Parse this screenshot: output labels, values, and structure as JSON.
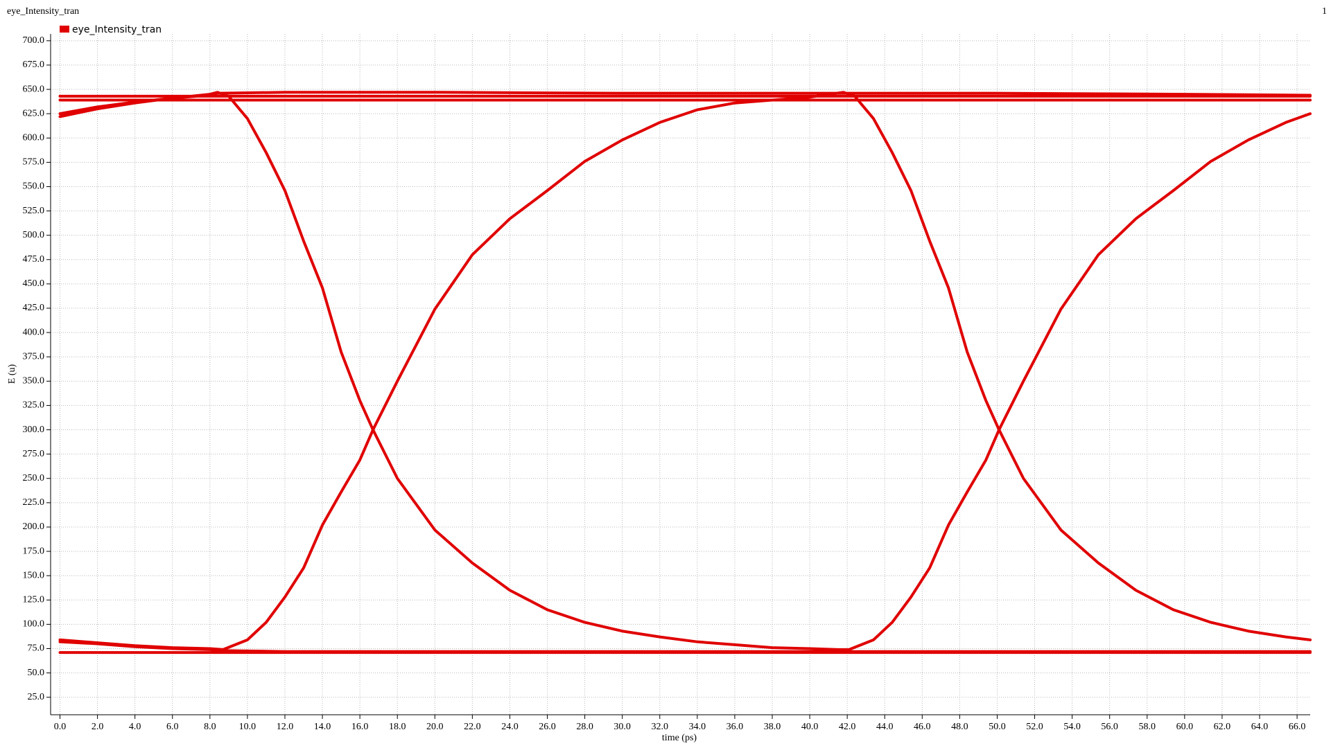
{
  "chart_data": {
    "type": "line",
    "title": "eye_Intensity_tran",
    "annotation": "1",
    "x_label": "time (ps)",
    "y_label": "E (u)",
    "grid": true,
    "legend_position": "upper left",
    "xlim": [
      -0.5,
      66.7
    ],
    "ylim": [
      7,
      707
    ],
    "xticks": [
      {
        "value": 0,
        "label": "0.0"
      },
      {
        "value": 2,
        "label": "2.0"
      },
      {
        "value": 4,
        "label": "4.0"
      },
      {
        "value": 6,
        "label": "6.0"
      },
      {
        "value": 8,
        "label": "8.0"
      },
      {
        "value": 10,
        "label": "10.0"
      },
      {
        "value": 12,
        "label": "12.0"
      },
      {
        "value": 14,
        "label": "14.0"
      },
      {
        "value": 16,
        "label": "16.0"
      },
      {
        "value": 18,
        "label": "18.0"
      },
      {
        "value": 20,
        "label": "20.0"
      },
      {
        "value": 22,
        "label": "22.0"
      },
      {
        "value": 24,
        "label": "24.0"
      },
      {
        "value": 26,
        "label": "26.0"
      },
      {
        "value": 28,
        "label": "28.0"
      },
      {
        "value": 30,
        "label": "30.0"
      },
      {
        "value": 32,
        "label": "32.0"
      },
      {
        "value": 34,
        "label": "34.0"
      },
      {
        "value": 36,
        "label": "36.0"
      },
      {
        "value": 38,
        "label": "38.0"
      },
      {
        "value": 40,
        "label": "40.0"
      },
      {
        "value": 42,
        "label": "42.0"
      },
      {
        "value": 44,
        "label": "44.0"
      },
      {
        "value": 46,
        "label": "46.0"
      },
      {
        "value": 48,
        "label": "48.0"
      },
      {
        "value": 50,
        "label": "50.0"
      },
      {
        "value": 52,
        "label": "52.0"
      },
      {
        "value": 54,
        "label": "54.0"
      },
      {
        "value": 56,
        "label": "56.0"
      },
      {
        "value": 58,
        "label": "58.0"
      },
      {
        "value": 60,
        "label": "60.0"
      },
      {
        "value": 62,
        "label": "62.0"
      },
      {
        "value": 64,
        "label": "64.0"
      },
      {
        "value": 66,
        "label": "66.0"
      }
    ],
    "yticks": [
      {
        "value": 25,
        "label": "25.0"
      },
      {
        "value": 50,
        "label": "50.0"
      },
      {
        "value": 75,
        "label": "75.0"
      },
      {
        "value": 100,
        "label": "100.0"
      },
      {
        "value": 125,
        "label": "125.0"
      },
      {
        "value": 150,
        "label": "150.0"
      },
      {
        "value": 175,
        "label": "175.0"
      },
      {
        "value": 200,
        "label": "200.0"
      },
      {
        "value": 225,
        "label": "225.0"
      },
      {
        "value": 250,
        "label": "250.0"
      },
      {
        "value": 275,
        "label": "275.0"
      },
      {
        "value": 300,
        "label": "300.0"
      },
      {
        "value": 325,
        "label": "325.0"
      },
      {
        "value": 350,
        "label": "350.0"
      },
      {
        "value": 375,
        "label": "375.0"
      },
      {
        "value": 400,
        "label": "400.0"
      },
      {
        "value": 425,
        "label": "425.0"
      },
      {
        "value": 450,
        "label": "450.0"
      },
      {
        "value": 475,
        "label": "475.0"
      },
      {
        "value": 500,
        "label": "500.0"
      },
      {
        "value": 525,
        "label": "525.0"
      },
      {
        "value": 550,
        "label": "550.0"
      },
      {
        "value": 575,
        "label": "575.0"
      },
      {
        "value": 600,
        "label": "600.0"
      },
      {
        "value": 625,
        "label": "625.0"
      },
      {
        "value": 650,
        "label": "650.0"
      },
      {
        "value": 675,
        "label": "675.0"
      },
      {
        "value": 700,
        "label": "700.0"
      }
    ],
    "series": [
      {
        "name": "eye_Intensity_tran",
        "color": "#e00000",
        "x": [
          0,
          2,
          4,
          6,
          8,
          8.4,
          9,
          10,
          11,
          12,
          13,
          14,
          15,
          16,
          16.7,
          18,
          20,
          22,
          24,
          26,
          28,
          30,
          32,
          34,
          36,
          38,
          40,
          41.5,
          42.1,
          43.4,
          44.4,
          45.4,
          46.4,
          47.4,
          48.4,
          49.4,
          50.1,
          51.4,
          53.4,
          55.4,
          57.4,
          59.4,
          61.4,
          63.4,
          65.4,
          66.7,
          null,
          0,
          2,
          4,
          6,
          8,
          8.7,
          10,
          11,
          12,
          13,
          14,
          15,
          16,
          16.7,
          18,
          20,
          22,
          24,
          26,
          28,
          30,
          32,
          34,
          36,
          38,
          40,
          41.8,
          42.4,
          43.4,
          44.4,
          45.4,
          46.4,
          47.4,
          48.4,
          49.4,
          50.1,
          51.4,
          53.4,
          55.4,
          57.4,
          59.4,
          61.4,
          63.4,
          65.4,
          66.7,
          null,
          0,
          2,
          4,
          6,
          8,
          8.4,
          12,
          20,
          30,
          40,
          50,
          60,
          66.7,
          null,
          0,
          2,
          4,
          6,
          8,
          8.7,
          12,
          30,
          66.7,
          null,
          0,
          66.7,
          null,
          0,
          66.7,
          null,
          0,
          66.7
        ],
        "values": [
          622,
          630,
          636,
          641,
          645,
          647,
          643,
          620,
          585,
          546,
          494,
          446,
          380,
          330,
          300,
          250,
          197,
          163,
          135,
          115,
          102,
          93,
          87,
          82,
          79,
          76,
          75,
          74,
          74,
          84,
          102,
          128,
          158,
          202,
          236,
          269,
          300,
          350,
          424,
          480,
          517,
          546,
          576,
          598,
          616,
          625,
          null,
          84,
          81,
          78,
          76,
          75,
          74,
          84,
          102,
          128,
          158,
          202,
          236,
          269,
          300,
          350,
          424,
          480,
          517,
          546,
          576,
          598,
          616,
          629,
          636,
          639,
          642,
          647,
          643,
          620,
          585,
          546,
          494,
          446,
          380,
          330,
          300,
          250,
          197,
          163,
          135,
          115,
          102,
          93,
          87,
          84,
          null,
          625,
          632,
          637,
          641,
          644,
          646,
          647,
          647,
          646,
          646,
          646,
          645,
          644,
          null,
          82,
          80,
          77,
          75,
          74,
          73,
          72,
          72,
          72,
          null,
          643,
          643,
          null,
          639,
          639,
          null,
          71,
          71
        ]
      }
    ]
  }
}
